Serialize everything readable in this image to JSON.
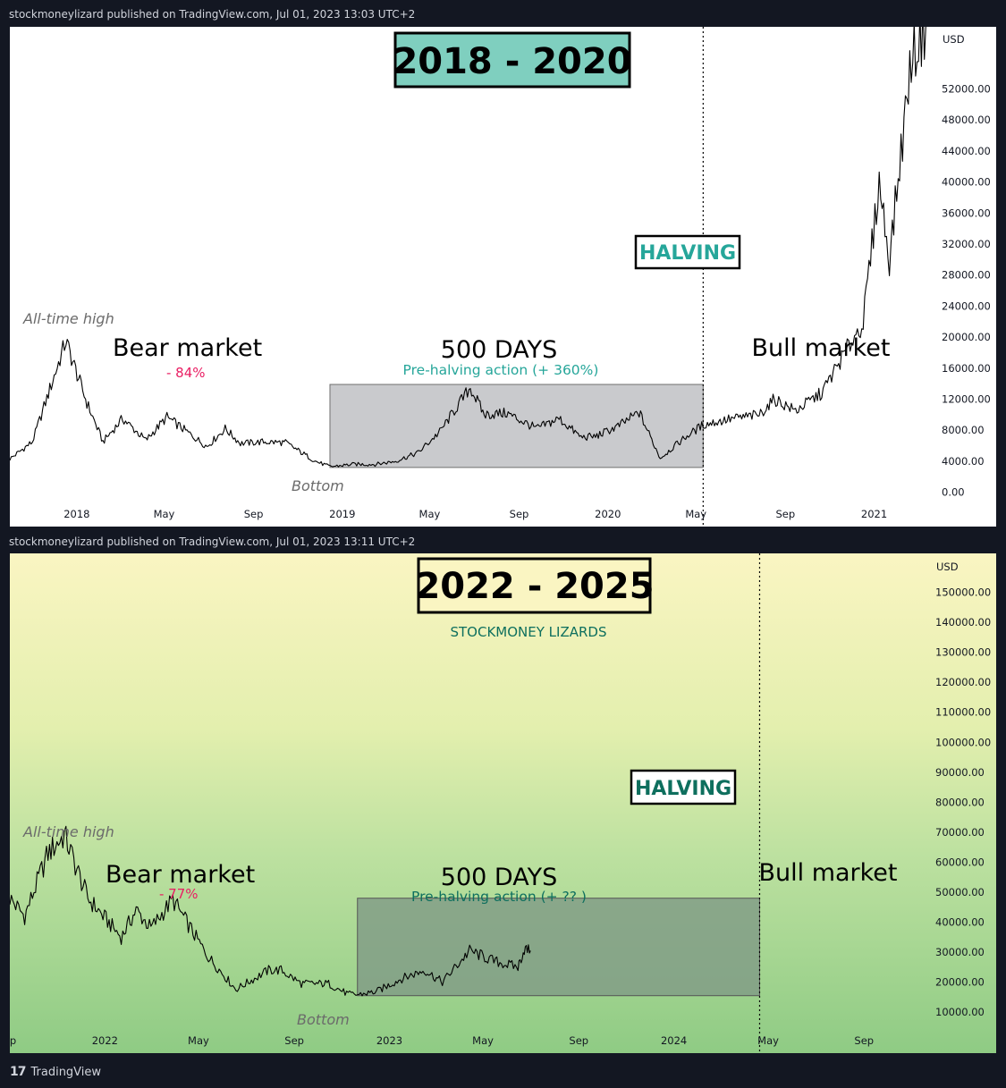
{
  "panels": [
    {
      "header": "stockmoneylizard published on TradingView.com, Jul 01, 2023 13:03 UTC+2",
      "title": "2018 - 2020",
      "watermark": "",
      "halving_label": "HALVING",
      "ath_label": "All-time high",
      "bear_label": "Bear market",
      "bear_pct": "- 84%",
      "days_label": "500 DAYS",
      "prehalving_label": "Pre-halving action (+ 360%)",
      "bull_label": "Bull market",
      "bottom_label": "Bottom",
      "currency": "USD",
      "colors": {
        "background": "#ffffff",
        "title_box": "#7fcfbf",
        "accent": "#26a69a",
        "bear_red": "#e91e63",
        "box_fill": "#c9cacd"
      }
    },
    {
      "header": "stockmoneylizard published on TradingView.com, Jul 01, 2023 13:11 UTC+2",
      "title": "2022 - 2025",
      "watermark": "STOCKMONEY LIZARDS",
      "halving_label": "HALVING",
      "ath_label": "All-time high",
      "bear_label": "Bear market",
      "bear_pct": "- 77%",
      "days_label": "500 DAYS",
      "prehalving_label": "Pre-halving action (+ ?? )",
      "bull_label": "Bull market",
      "bottom_label": "Bottom",
      "currency": "USD",
      "colors": {
        "background": "yellow-to-green gradient",
        "title_box": "#faf5c2",
        "accent": "#0e6f5e",
        "bear_red": "#e91e63",
        "box_fill": "#8aa88e"
      }
    }
  ],
  "chart_data": [
    {
      "type": "line",
      "title": "2018 - 2020",
      "series": [
        {
          "x": [
            "2017-10-01",
            "2017-11-01",
            "2017-12-17",
            "2018-01-15",
            "2018-02-06",
            "2018-03-05",
            "2018-04-06",
            "2018-05-05",
            "2018-06-29",
            "2018-07-24",
            "2018-08-14",
            "2018-09-15",
            "2018-10-15",
            "2018-11-25",
            "2018-12-15",
            "2019-01-15",
            "2019-02-15",
            "2019-03-15",
            "2019-04-15",
            "2019-05-15",
            "2019-06-26",
            "2019-07-15",
            "2019-08-15",
            "2019-09-25",
            "2019-10-26",
            "2019-11-25",
            "2019-12-15",
            "2020-01-15",
            "2020-02-13",
            "2020-03-13",
            "2020-04-15",
            "2020-05-11",
            "2020-06-15",
            "2020-07-27",
            "2020-08-17",
            "2020-09-15",
            "2020-10-21",
            "2020-11-25",
            "2020-12-17",
            "2021-01-08",
            "2021-01-22",
            "2021-02-21",
            "2021-03-13"
          ],
          "y": [
            4300,
            6500,
            19500,
            11500,
            6500,
            9500,
            6700,
            9700,
            5900,
            8200,
            6300,
            6500,
            6400,
            4000,
            3300,
            3600,
            3600,
            4000,
            5100,
            7800,
            13500,
            10000,
            10200,
            8200,
            9500,
            7100,
            7200,
            8500,
            10300,
            4400,
            7000,
            8700,
            9400,
            10000,
            12000,
            10500,
            12800,
            18500,
            22000,
            40000,
            30000,
            56000,
            60000
          ]
        }
      ],
      "y_ticks": [
        0,
        4000,
        8000,
        12000,
        16000,
        20000,
        24000,
        28000,
        32000,
        36000,
        40000,
        44000,
        48000,
        52000
      ],
      "y_tick_labels": [
        "0.00",
        "4000.00",
        "8000.00",
        "12000.00",
        "16000.00",
        "20000.00",
        "24000.00",
        "28000.00",
        "32000.00",
        "36000.00",
        "40000.00",
        "44000.00",
        "48000.00",
        "52000.00"
      ],
      "ylim": [
        -2000,
        60000
      ],
      "xlim": [
        "2017-10-01",
        "2021-03-20"
      ],
      "x_ticks": [
        "2018-01-01",
        "2018-05-01",
        "2018-09-01",
        "2019-01-01",
        "2019-05-01",
        "2019-09-01",
        "2020-01-01",
        "2020-05-01",
        "2020-09-01",
        "2021-01-01"
      ],
      "x_tick_labels": [
        "2018",
        "May",
        "Sep",
        "2019",
        "May",
        "Sep",
        "2020",
        "May",
        "Sep",
        "2021"
      ],
      "halving_date": "2020-05-11",
      "box": {
        "x_start": "2018-12-15",
        "x_end": "2020-05-11",
        "y_low": 3200,
        "y_high": 13900
      },
      "grid": false
    },
    {
      "type": "line",
      "title": "2022 - 2025",
      "series": [
        {
          "x": [
            "2021-09-01",
            "2021-09-20",
            "2021-10-20",
            "2021-11-10",
            "2021-12-10",
            "2022-01-22",
            "2022-02-10",
            "2022-03-01",
            "2022-03-29",
            "2022-05-12",
            "2022-06-18",
            "2022-07-30",
            "2022-08-15",
            "2022-09-10",
            "2022-10-15",
            "2022-11-09",
            "2022-11-21",
            "2022-12-15",
            "2023-01-15",
            "2023-02-15",
            "2023-03-10",
            "2023-04-14",
            "2023-05-15",
            "2023-06-15",
            "2023-06-23",
            "2023-07-01"
          ],
          "y": [
            48000,
            42000,
            63000,
            69000,
            48000,
            35000,
            44000,
            38000,
            47500,
            29000,
            17600,
            24000,
            24000,
            19500,
            19500,
            16000,
            15800,
            16800,
            21000,
            24000,
            20000,
            30500,
            27000,
            25000,
            31000,
            30500
          ]
        }
      ],
      "y_ticks": [
        10000,
        20000,
        30000,
        40000,
        50000,
        60000,
        70000,
        80000,
        90000,
        100000,
        110000,
        120000,
        130000,
        140000,
        150000
      ],
      "y_tick_labels": [
        "10000.00",
        "20000.00",
        "30000.00",
        "40000.00",
        "50000.00",
        "60000.00",
        "70000.00",
        "80000.00",
        "90000.00",
        "100000.00",
        "110000.00",
        "120000.00",
        "130000.00",
        "140000.00",
        "150000.00"
      ],
      "ylim": [
        2000,
        160000
      ],
      "xlim": [
        "2021-09-01",
        "2024-11-20"
      ],
      "x_ticks": [
        "2021-09-01",
        "2022-01-01",
        "2022-05-01",
        "2022-09-01",
        "2023-01-01",
        "2023-05-01",
        "2023-09-01",
        "2024-01-01",
        "2024-05-01",
        "2024-09-01"
      ],
      "x_tick_labels": [
        "ep",
        "2022",
        "May",
        "Sep",
        "2023",
        "May",
        "Sep",
        "2024",
        "May",
        "Sep"
      ],
      "halving_date": "2024-04-20",
      "box": {
        "x_start": "2022-11-21",
        "x_end": "2024-04-20",
        "y_low": 15500,
        "y_high": 48000
      },
      "grid": false
    }
  ],
  "footer": {
    "brand": "TradingView"
  }
}
